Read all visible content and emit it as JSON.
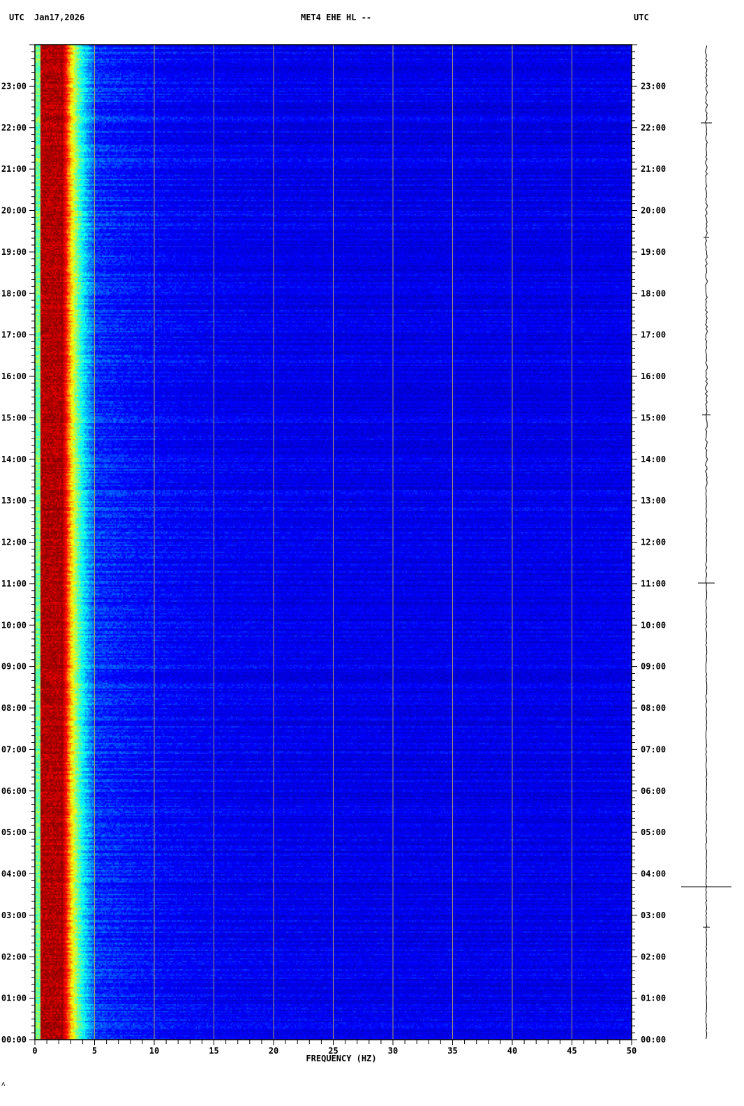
{
  "header": {
    "left_tz": "UTC",
    "date": "Jan17,2026",
    "title": "MET4 EHE HL --",
    "right_tz": "UTC"
  },
  "footer_mark": "ʌ",
  "chart_data": {
    "type": "heatmap",
    "title": "MET4 EHE HL --",
    "xlabel": "FREQUENCY (HZ)",
    "ylabel": "UTC",
    "xlim": [
      0,
      50
    ],
    "ylim_hours": [
      0,
      24
    ],
    "x_ticks": [
      "0",
      "5",
      "10",
      "15",
      "20",
      "25",
      "30",
      "35",
      "40",
      "45",
      "50"
    ],
    "y_ticks": [
      "00:00",
      "01:00",
      "02:00",
      "03:00",
      "04:00",
      "05:00",
      "06:00",
      "07:00",
      "08:00",
      "09:00",
      "10:00",
      "11:00",
      "12:00",
      "13:00",
      "14:00",
      "15:00",
      "16:00",
      "17:00",
      "18:00",
      "19:00",
      "20:00",
      "21:00",
      "22:00",
      "23:00"
    ],
    "grid_vertical_every_hz": 5,
    "colormap": [
      "#00008b",
      "#0000ff",
      "#00ffff",
      "#ffff00",
      "#ff0000",
      "#8b0000"
    ],
    "grid_color": "#a09a70",
    "energy_peak_hz": [
      0.5,
      2.5
    ]
  }
}
